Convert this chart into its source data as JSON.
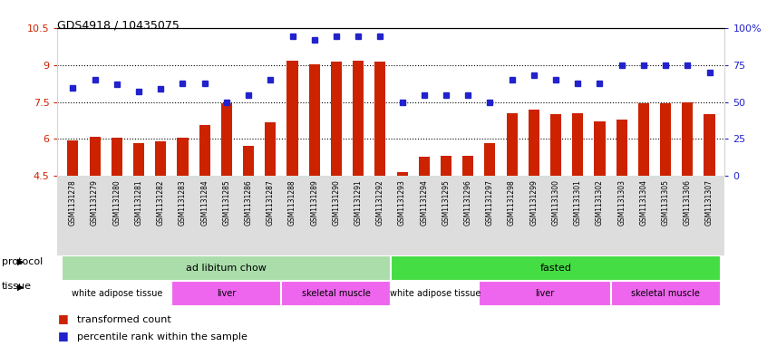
{
  "title": "GDS4918 / 10435075",
  "samples": [
    "GSM1131278",
    "GSM1131279",
    "GSM1131280",
    "GSM1131281",
    "GSM1131282",
    "GSM1131283",
    "GSM1131284",
    "GSM1131285",
    "GSM1131286",
    "GSM1131287",
    "GSM1131288",
    "GSM1131289",
    "GSM1131290",
    "GSM1131291",
    "GSM1131292",
    "GSM1131293",
    "GSM1131294",
    "GSM1131295",
    "GSM1131296",
    "GSM1131297",
    "GSM1131298",
    "GSM1131299",
    "GSM1131300",
    "GSM1131301",
    "GSM1131302",
    "GSM1131303",
    "GSM1131304",
    "GSM1131305",
    "GSM1131306",
    "GSM1131307"
  ],
  "bar_values": [
    5.95,
    6.1,
    6.05,
    5.82,
    5.92,
    6.05,
    6.58,
    7.45,
    5.72,
    6.68,
    9.18,
    9.05,
    9.15,
    9.2,
    9.15,
    4.65,
    5.28,
    5.32,
    5.3,
    5.82,
    7.05,
    7.2,
    7.0,
    7.05,
    6.7,
    6.8,
    7.45,
    7.45,
    7.5,
    7.0
  ],
  "blue_pct": [
    60,
    65,
    62,
    57,
    59,
    63,
    63,
    50,
    55,
    65,
    95,
    92,
    95,
    95,
    95,
    50,
    55,
    55,
    55,
    50,
    65,
    68,
    65,
    63,
    63,
    75,
    75,
    75,
    75,
    70
  ],
  "bar_color": "#CC2200",
  "blue_color": "#2222CC",
  "ylim_left": [
    4.5,
    10.5
  ],
  "yticks_left": [
    4.5,
    6.0,
    7.5,
    9.0,
    10.5
  ],
  "ytick_labels_left": [
    "4.5",
    "6",
    "7.5",
    "9",
    "10.5"
  ],
  "ytick_labels_right": [
    "0",
    "25",
    "50",
    "75",
    "100%"
  ],
  "dotted_lines": [
    6.0,
    7.5,
    9.0
  ],
  "protocols": [
    {
      "label": "ad libitum chow",
      "start": 0,
      "end": 15,
      "color": "#AADDAA"
    },
    {
      "label": "fasted",
      "start": 15,
      "end": 30,
      "color": "#44DD44"
    }
  ],
  "tissues": [
    {
      "label": "white adipose tissue",
      "start": 0,
      "end": 5,
      "color": "#FFFFFF"
    },
    {
      "label": "liver",
      "start": 5,
      "end": 10,
      "color": "#EE66EE"
    },
    {
      "label": "skeletal muscle",
      "start": 10,
      "end": 15,
      "color": "#EE66EE"
    },
    {
      "label": "white adipose tissue",
      "start": 15,
      "end": 19,
      "color": "#FFFFFF"
    },
    {
      "label": "liver",
      "start": 19,
      "end": 25,
      "color": "#EE66EE"
    },
    {
      "label": "skeletal muscle",
      "start": 25,
      "end": 30,
      "color": "#EE66EE"
    }
  ],
  "legend_bar_label": "transformed count",
  "legend_dot_label": "percentile rank within the sample",
  "protocol_label": "protocol",
  "tissue_label": "tissue",
  "bg_color": "#FFFFFF",
  "tick_area_color": "#DDDDDD"
}
